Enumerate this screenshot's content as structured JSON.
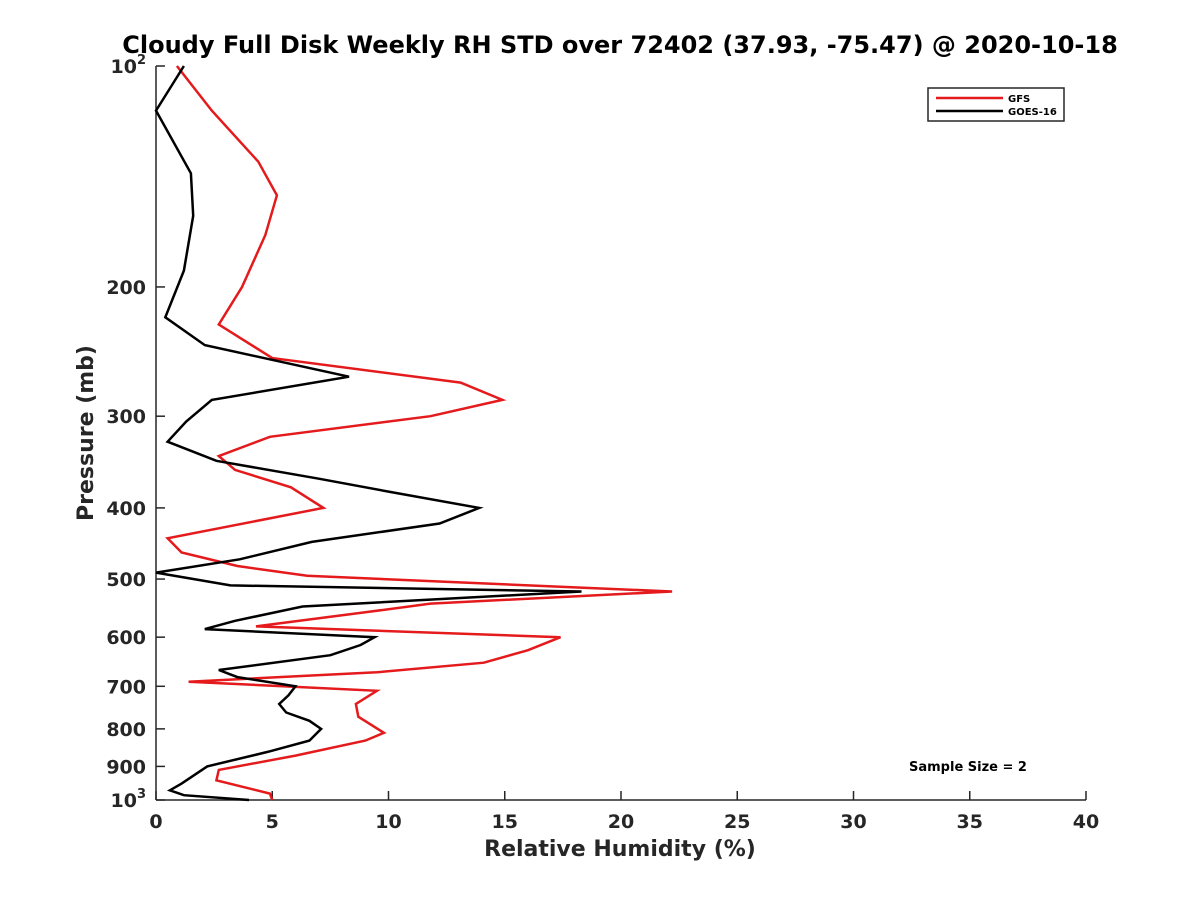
{
  "chart_data": {
    "type": "line",
    "title": "Cloudy Full Disk Weekly RH STD over 72402 (37.93, -75.47) @ 2020-10-18",
    "xlabel": "Relative Humidity (%)",
    "ylabel": "Pressure (mb)",
    "xlim": [
      0,
      40
    ],
    "ylim": [
      100,
      1000
    ],
    "y_scale": "log",
    "y_reversed": true,
    "grid": false,
    "legend_position": "top-right",
    "x_ticks": [
      0,
      5,
      10,
      15,
      20,
      25,
      30,
      35,
      40
    ],
    "x_tick_labels": [
      "0",
      "5",
      "10",
      "15",
      "20",
      "25",
      "30",
      "35",
      "40"
    ],
    "y_ticks": [
      100,
      200,
      300,
      400,
      500,
      600,
      700,
      800,
      900,
      1000
    ],
    "y_tick_labels": [
      {
        "base": "10",
        "sup": "2"
      },
      {
        "base": "200",
        "sup": ""
      },
      {
        "base": "300",
        "sup": ""
      },
      {
        "base": "400",
        "sup": ""
      },
      {
        "base": "500",
        "sup": ""
      },
      {
        "base": "600",
        "sup": ""
      },
      {
        "base": "700",
        "sup": ""
      },
      {
        "base": "800",
        "sup": ""
      },
      {
        "base": "900",
        "sup": ""
      },
      {
        "base": "10",
        "sup": "3"
      }
    ],
    "series": [
      {
        "name": "GFS",
        "color": "#e41a1c",
        "points": [
          [
            0.9,
            100
          ],
          [
            2.4,
            115
          ],
          [
            4.4,
            135
          ],
          [
            5.2,
            150
          ],
          [
            4.7,
            170
          ],
          [
            3.7,
            200
          ],
          [
            2.7,
            225
          ],
          [
            5.0,
            250
          ],
          [
            13.1,
            270
          ],
          [
            14.9,
            285
          ],
          [
            11.8,
            300
          ],
          [
            4.9,
            320
          ],
          [
            2.7,
            340
          ],
          [
            3.4,
            355
          ],
          [
            5.8,
            375
          ],
          [
            7.2,
            400
          ],
          [
            0.5,
            440
          ],
          [
            1.1,
            460
          ],
          [
            3.5,
            480
          ],
          [
            6.5,
            495
          ],
          [
            22.2,
            520
          ],
          [
            11.8,
            540
          ],
          [
            9.0,
            555
          ],
          [
            4.3,
            580
          ],
          [
            17.4,
            600
          ],
          [
            16.0,
            625
          ],
          [
            14.1,
            650
          ],
          [
            9.5,
            670
          ],
          [
            1.4,
            690
          ],
          [
            9.5,
            710
          ],
          [
            8.6,
            740
          ],
          [
            8.7,
            770
          ],
          [
            9.8,
            810
          ],
          [
            9.0,
            830
          ],
          [
            6.0,
            870
          ],
          [
            2.7,
            910
          ],
          [
            2.6,
            940
          ],
          [
            4.9,
            980
          ],
          [
            5.0,
            1000
          ]
        ]
      },
      {
        "name": "GOES-16",
        "color": "#000000",
        "points": [
          [
            1.2,
            100
          ],
          [
            0.0,
            115
          ],
          [
            1.5,
            140
          ],
          [
            1.6,
            160
          ],
          [
            1.2,
            190
          ],
          [
            0.4,
            220
          ],
          [
            2.1,
            240
          ],
          [
            8.3,
            265
          ],
          [
            2.4,
            285
          ],
          [
            1.3,
            305
          ],
          [
            0.5,
            325
          ],
          [
            2.6,
            345
          ],
          [
            7.0,
            365
          ],
          [
            10.0,
            380
          ],
          [
            13.9,
            400
          ],
          [
            12.2,
            420
          ],
          [
            6.7,
            445
          ],
          [
            3.6,
            470
          ],
          [
            0.0,
            490
          ],
          [
            3.2,
            510
          ],
          [
            18.3,
            520
          ],
          [
            6.3,
            545
          ],
          [
            3.4,
            570
          ],
          [
            2.1,
            585
          ],
          [
            9.4,
            600
          ],
          [
            8.8,
            615
          ],
          [
            7.5,
            635
          ],
          [
            2.7,
            665
          ],
          [
            3.5,
            680
          ],
          [
            6.0,
            700
          ],
          [
            5.7,
            720
          ],
          [
            5.3,
            740
          ],
          [
            5.6,
            760
          ],
          [
            6.6,
            780
          ],
          [
            7.1,
            800
          ],
          [
            6.6,
            830
          ],
          [
            4.8,
            860
          ],
          [
            2.2,
            900
          ],
          [
            1.1,
            950
          ],
          [
            0.6,
            970
          ],
          [
            1.2,
            985
          ],
          [
            4.0,
            1000
          ]
        ]
      }
    ],
    "annotation": "Sample Size = 2"
  }
}
